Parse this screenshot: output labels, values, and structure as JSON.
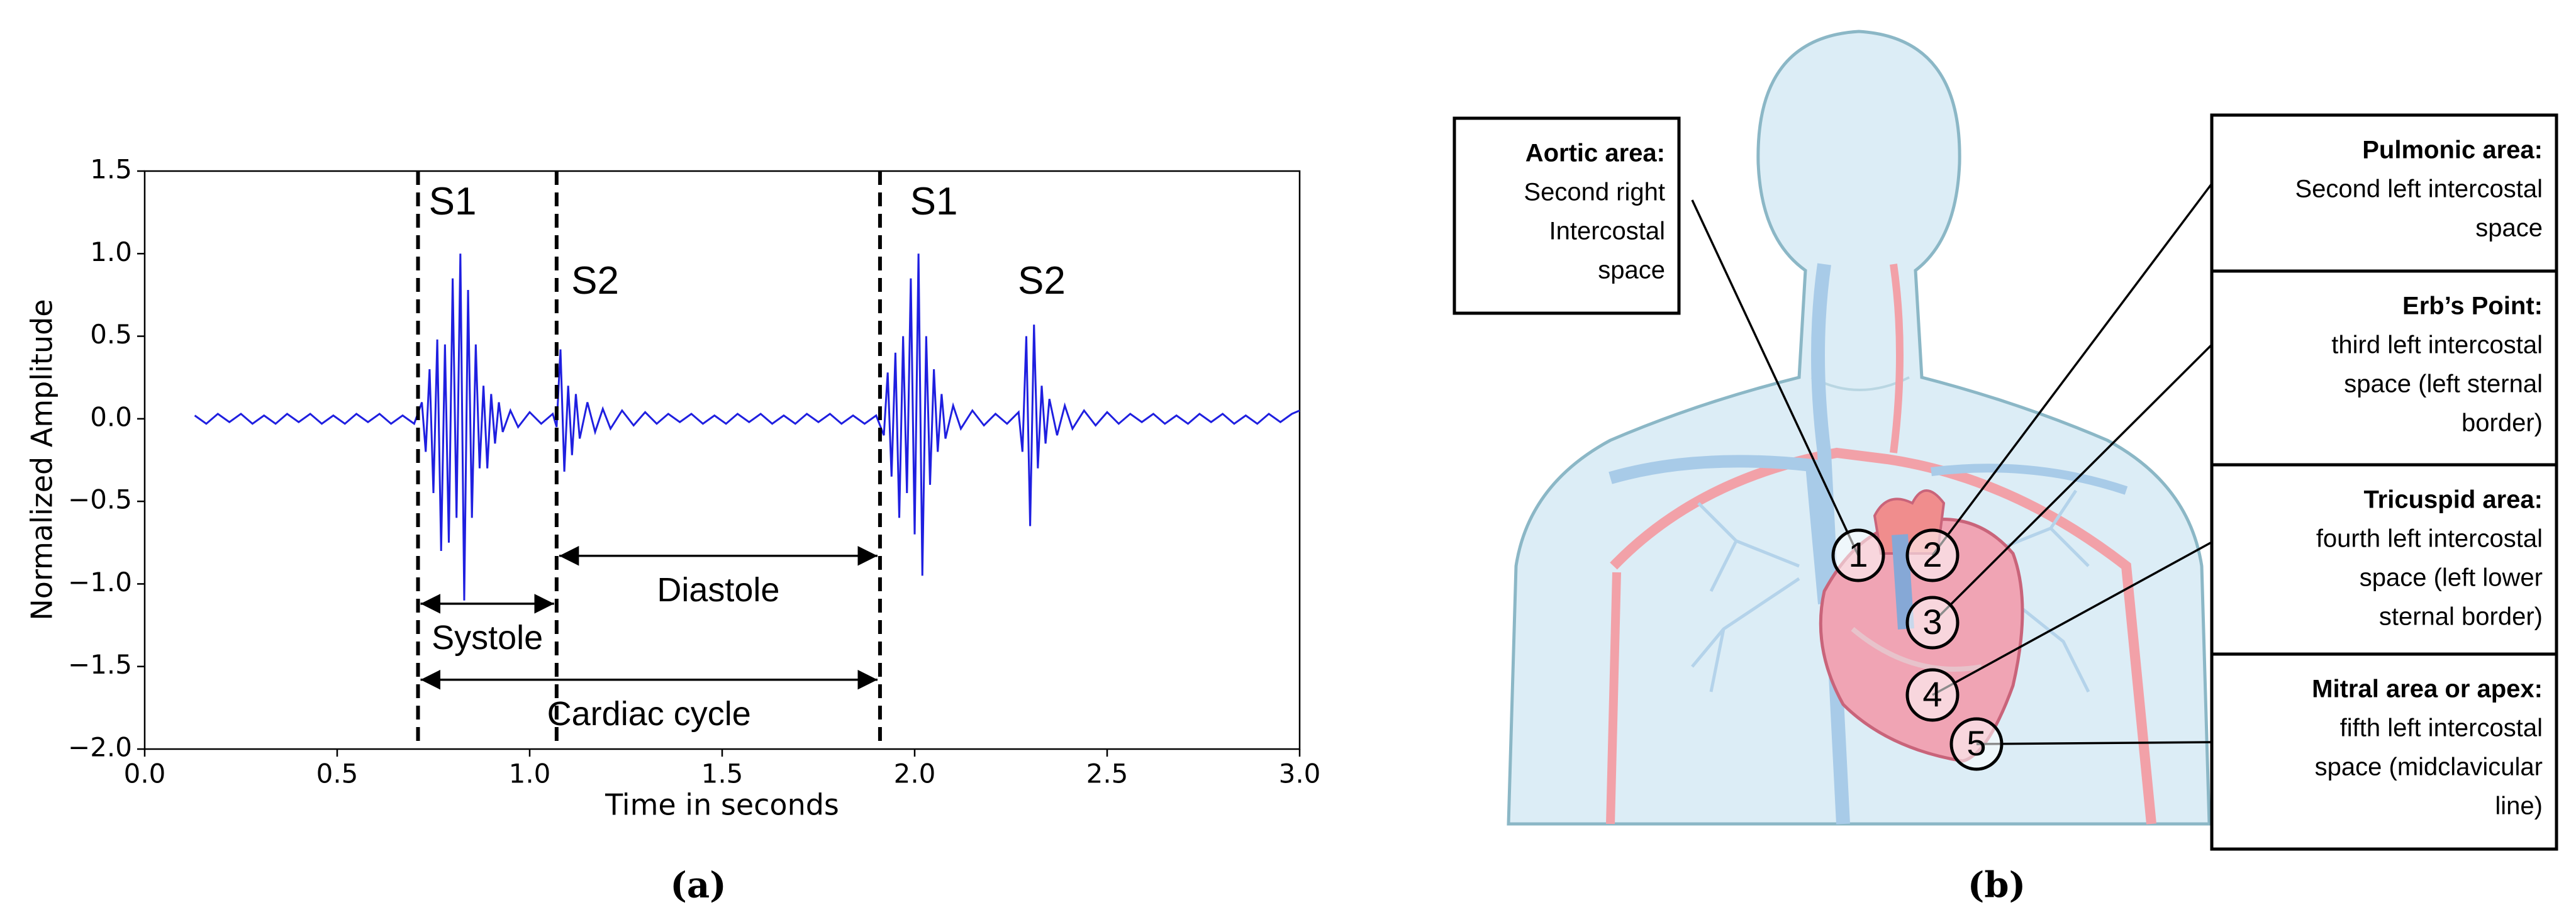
{
  "chart_data": {
    "type": "line",
    "xlabel": "Time in seconds",
    "ylabel": "Normalized Amplitude",
    "color": "#1f1fe0",
    "x": [
      0.13,
      0.16,
      0.19,
      0.22,
      0.25,
      0.28,
      0.31,
      0.34,
      0.37,
      0.4,
      0.43,
      0.46,
      0.49,
      0.52,
      0.55,
      0.58,
      0.61,
      0.64,
      0.67,
      0.7,
      0.72,
      0.73,
      0.74,
      0.75,
      0.76,
      0.77,
      0.78,
      0.79,
      0.8,
      0.81,
      0.82,
      0.83,
      0.84,
      0.85,
      0.86,
      0.87,
      0.88,
      0.89,
      0.9,
      0.91,
      0.92,
      0.93,
      0.95,
      0.97,
      1.0,
      1.03,
      1.06,
      1.07,
      1.08,
      1.09,
      1.1,
      1.11,
      1.12,
      1.13,
      1.15,
      1.17,
      1.19,
      1.21,
      1.24,
      1.27,
      1.3,
      1.33,
      1.36,
      1.39,
      1.42,
      1.45,
      1.48,
      1.51,
      1.54,
      1.57,
      1.6,
      1.63,
      1.66,
      1.69,
      1.72,
      1.75,
      1.78,
      1.81,
      1.84,
      1.87,
      1.9,
      1.92,
      1.93,
      1.94,
      1.95,
      1.96,
      1.97,
      1.98,
      1.99,
      2.0,
      2.01,
      2.02,
      2.03,
      2.04,
      2.05,
      2.06,
      2.07,
      2.08,
      2.1,
      2.12,
      2.15,
      2.18,
      2.21,
      2.24,
      2.27,
      2.28,
      2.29,
      2.3,
      2.31,
      2.32,
      2.33,
      2.34,
      2.35,
      2.37,
      2.39,
      2.41,
      2.44,
      2.47,
      2.5,
      2.53,
      2.56,
      2.59,
      2.62,
      2.65,
      2.68,
      2.71,
      2.74,
      2.77,
      2.8,
      2.83,
      2.86,
      2.89,
      2.92,
      2.95,
      2.98,
      3.0
    ],
    "values": [
      0.02,
      -0.03,
      0.03,
      -0.02,
      0.03,
      -0.03,
      0.02,
      -0.03,
      0.03,
      -0.02,
      0.03,
      -0.03,
      0.02,
      -0.03,
      0.03,
      -0.02,
      0.03,
      -0.03,
      0.02,
      -0.03,
      0.1,
      -0.2,
      0.3,
      -0.45,
      0.48,
      -0.8,
      0.45,
      -0.75,
      0.85,
      -0.6,
      1.0,
      -1.1,
      0.78,
      -0.6,
      0.45,
      -0.3,
      0.2,
      -0.3,
      0.15,
      -0.15,
      0.1,
      -0.08,
      0.05,
      -0.05,
      0.04,
      -0.03,
      0.03,
      -0.05,
      0.42,
      -0.32,
      0.2,
      -0.22,
      0.15,
      -0.12,
      0.1,
      -0.08,
      0.06,
      -0.06,
      0.05,
      -0.04,
      0.04,
      -0.03,
      0.03,
      -0.02,
      0.03,
      -0.03,
      0.02,
      -0.03,
      0.03,
      -0.02,
      0.03,
      -0.03,
      0.02,
      -0.03,
      0.03,
      -0.02,
      0.03,
      -0.03,
      0.02,
      -0.03,
      0.02,
      -0.1,
      0.28,
      -0.35,
      0.4,
      -0.6,
      0.5,
      -0.45,
      0.85,
      -0.7,
      1.0,
      -0.95,
      0.5,
      -0.4,
      0.3,
      -0.2,
      0.15,
      -0.12,
      0.08,
      -0.06,
      0.05,
      -0.04,
      0.03,
      -0.03,
      0.04,
      -0.2,
      0.5,
      -0.65,
      0.57,
      -0.3,
      0.2,
      -0.15,
      0.12,
      -0.1,
      0.08,
      -0.06,
      0.05,
      -0.04,
      0.04,
      -0.03,
      0.03,
      -0.02,
      0.03,
      -0.03,
      0.02,
      -0.03,
      0.03,
      -0.02,
      0.03,
      -0.03,
      0.02,
      -0.03,
      0.03,
      -0.02,
      0.03,
      0.05
    ],
    "xlim": [
      0,
      3
    ],
    "xticks": [
      {
        "value": 0,
        "label": "0.0"
      },
      0.5,
      {
        "value": 1,
        "label": "1.0"
      },
      1.5,
      {
        "value": 2,
        "label": "2.0"
      },
      2.5,
      {
        "value": 3,
        "label": "3.0"
      }
    ],
    "ylim": [
      -2,
      1.5
    ],
    "yticks": [
      {
        "value": -2,
        "label": "−2.0"
      },
      {
        "value": -1.5,
        "label": "−1.5"
      },
      {
        "value": -1,
        "label": "−1.0"
      },
      {
        "value": -0.5,
        "label": "−0.5"
      },
      {
        "value": 0,
        "label": "0.0"
      },
      0.5,
      {
        "value": 1,
        "label": "1.0"
      },
      1.5
    ],
    "vlines": [
      0.71,
      1.07,
      1.91
    ],
    "annotations": [
      {
        "text": "S1",
        "x": 0.8,
        "y": 1.3
      },
      {
        "text": "S2",
        "x": 1.17,
        "y": 0.82
      },
      {
        "text": "S1",
        "x": 2.05,
        "y": 1.3
      },
      {
        "text": "S2",
        "x": 2.33,
        "y": 0.82
      }
    ],
    "arrows": [
      {
        "label": "Systole",
        "x0": 0.71,
        "x1": 1.07,
        "y": -1.12
      },
      {
        "label": "Diastole",
        "x0": 1.07,
        "x1": 1.91,
        "y": -0.83
      },
      {
        "label": "Cardiac cycle",
        "x0": 0.71,
        "x1": 1.91,
        "y": -1.58
      }
    ]
  },
  "panels": {
    "a": "(a)",
    "b": "(b)"
  },
  "diagram": {
    "boxes": [
      {
        "title": "Aortic area:",
        "lines": [
          "Second right",
          "Intercostal",
          "space"
        ]
      },
      {
        "title": "Pulmonic area:",
        "lines": [
          "Second left intercostal",
          "space"
        ]
      },
      {
        "title": "Erb’s Point:",
        "lines": [
          "third left intercostal",
          "space (left sternal",
          "border)"
        ]
      },
      {
        "title": "Tricuspid area:",
        "lines": [
          "fourth left intercostal",
          "space (left lower",
          "sternal border)"
        ]
      },
      {
        "title": "Mitral area or apex:",
        "lines": [
          "fifth left intercostal",
          "space (midclavicular",
          "line)"
        ]
      }
    ],
    "markers": [
      "1",
      "2",
      "3",
      "4",
      "5"
    ]
  }
}
